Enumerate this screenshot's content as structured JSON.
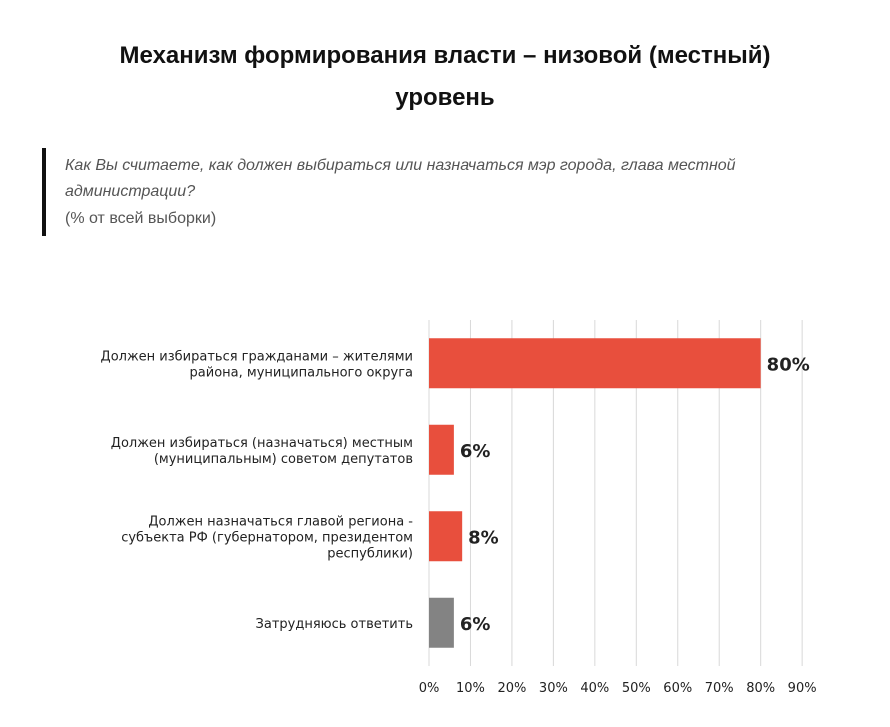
{
  "title": "Механизм формирования власти – низовой (местный) уровень",
  "question": "Как Вы считаете, как должен выбираться или назначаться мэр города, глава местной администрации?",
  "note": "(% от всей выборки)",
  "colors": {
    "accent": "#e84f3d",
    "neutral": "#838383",
    "grid": "#d8d8d8"
  },
  "chart_data": {
    "type": "bar",
    "orientation": "horizontal",
    "categories": [
      [
        "Должен избираться гражданами – жителями",
        "района, муниципального округа"
      ],
      [
        "Должен избираться (назначаться) местным",
        "(муниципальным) советом депутатов"
      ],
      [
        "Должен назначаться главой региона -",
        "субъекта РФ (губернатором, президентом",
        "республики)"
      ],
      [
        "Затрудняюсь ответить"
      ]
    ],
    "values": [
      80,
      6,
      8,
      6
    ],
    "value_labels": [
      "80%",
      "6%",
      "8%",
      "6%"
    ],
    "bar_colors": [
      "#e84f3d",
      "#e84f3d",
      "#e84f3d",
      "#838383"
    ],
    "xlim": [
      0,
      90
    ],
    "xticks": [
      "0%",
      "10%",
      "20%",
      "30%",
      "40%",
      "50%",
      "60%",
      "70%",
      "80%",
      "90%"
    ],
    "grid": true
  }
}
